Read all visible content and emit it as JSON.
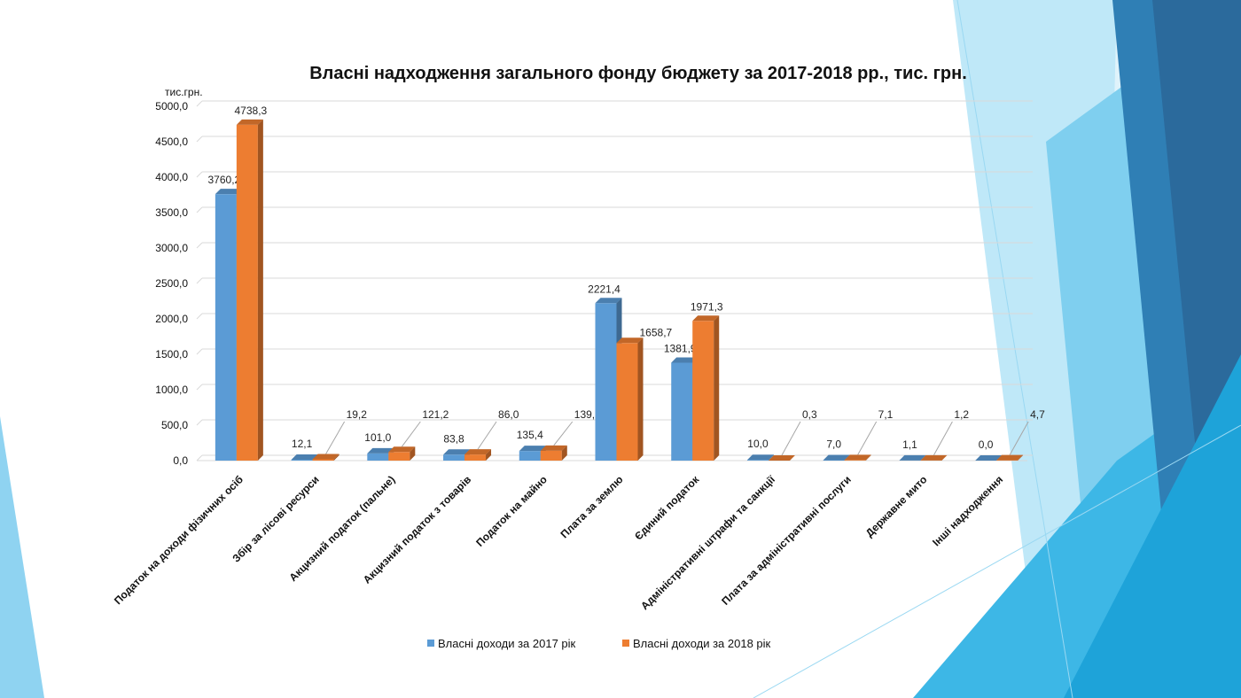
{
  "slide": {
    "decor_colors": [
      "#c9eaf8",
      "#8fd3f1",
      "#5bc2ea",
      "#2fa7d9",
      "#1f84bb",
      "#2d6fa1"
    ]
  },
  "chart_data": {
    "type": "bar",
    "title": "Власні надходження загального фонду бюджету за 2017-2018 рр., тис. грн.",
    "ylabel": "тис.грн.",
    "ylim": [
      0,
      5000
    ],
    "yticks": [
      "0,0",
      "500,0",
      "1000,0",
      "1500,0",
      "2000,0",
      "2500,0",
      "3000,0",
      "3500,0",
      "4000,0",
      "4500,0",
      "5000,0"
    ],
    "grid": true,
    "legend_position": "bottom",
    "categories": [
      "Податок на доходи фізичних осіб",
      "Збір за лісові ресурси",
      "Акцизний податок (пальне)",
      "Акцизний податок з товарів",
      "Податок на майно",
      "Плата за землю",
      "Єдиний податок",
      "Адміністративні штрафи та санкції",
      "Плата за адміністративні послуги",
      "Державне мито",
      "Інші надходження"
    ],
    "series": [
      {
        "name": "Власні доходи за 2017 рік",
        "color": "#5b9bd5",
        "values": [
          3760.2,
          12.1,
          101.0,
          83.8,
          135.4,
          2221.4,
          1381.9,
          10.0,
          7.0,
          1.1,
          0.0
        ],
        "labels": [
          "3760,2",
          "12,1",
          "101,0",
          "83,8",
          "135,4",
          "2221,4",
          "1381,9",
          "10,0",
          "7,0",
          "1,1",
          "0,0"
        ]
      },
      {
        "name": "Власні доходи за 2018 рік",
        "color": "#ed7d31",
        "values": [
          4738.3,
          19.2,
          121.2,
          86.0,
          139.2,
          1658.7,
          1971.3,
          0.3,
          7.1,
          1.2,
          4.7
        ],
        "labels": [
          "4738,3",
          "19,2",
          "121,2",
          "86,0",
          "139,2",
          "1658,7",
          "1971,3",
          "0,3",
          "7,1",
          "1,2",
          "4,7"
        ]
      }
    ]
  }
}
